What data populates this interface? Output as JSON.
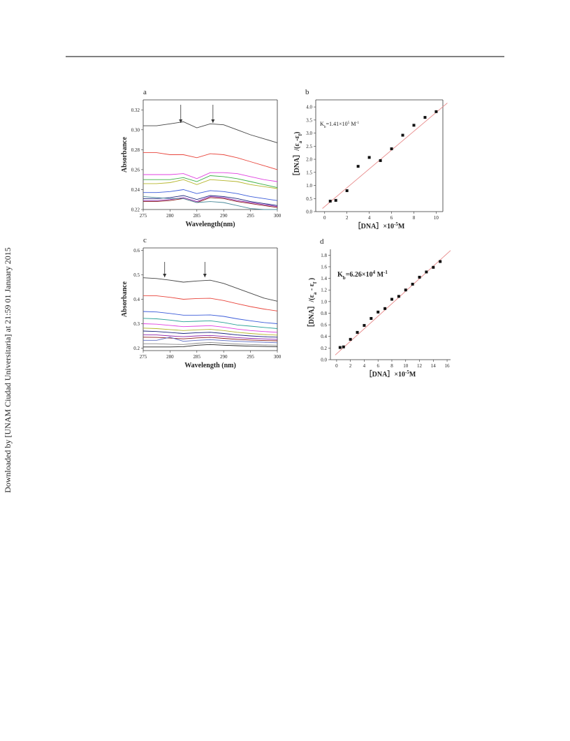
{
  "sidebar": "Downloaded by [UNAM Ciudad Universitaria] at 21:59 01 January 2015",
  "chart_data": [
    {
      "type": "line",
      "panel": "a",
      "xlabel": "Wavelength(nm)",
      "ylabel": "Absorbance",
      "x": [
        275,
        277.5,
        280,
        282.5,
        285,
        287.5,
        290,
        292.5,
        295,
        297.5,
        300
      ],
      "xlim": [
        275,
        300
      ],
      "xticks": [
        275,
        280,
        285,
        290,
        295,
        300
      ],
      "ylim": [
        0.22,
        0.33
      ],
      "yticks": [
        0.22,
        0.24,
        0.26,
        0.28,
        {
          "value": 0.3,
          "label": "0.30"
        },
        0.32
      ],
      "arrows": [
        282,
        288
      ],
      "series": [
        {
          "color": "#444444",
          "values": [
            0.304,
            0.304,
            0.306,
            0.308,
            0.302,
            0.306,
            0.305,
            0.3,
            0.295,
            0.291,
            0.287
          ]
        },
        {
          "color": "#e8453c",
          "values": [
            0.277,
            0.277,
            0.275,
            0.275,
            0.272,
            0.276,
            0.275,
            0.272,
            0.268,
            0.264,
            0.26
          ]
        },
        {
          "color": "#e040e0",
          "values": [
            0.255,
            0.255,
            0.255,
            0.256,
            0.251,
            0.257,
            0.257,
            0.256,
            0.253,
            0.25,
            0.248
          ]
        },
        {
          "color": "#3cb043",
          "values": [
            0.25,
            0.25,
            0.25,
            0.252,
            0.248,
            0.254,
            0.253,
            0.251,
            0.248,
            0.245,
            0.242
          ]
        },
        {
          "color": "#b5b52a",
          "values": [
            0.246,
            0.246,
            0.247,
            0.25,
            0.245,
            0.25,
            0.249,
            0.248,
            0.245,
            0.243,
            0.241
          ]
        },
        {
          "color": "#3a5bd9",
          "values": [
            0.237,
            0.237,
            0.238,
            0.24,
            0.236,
            0.239,
            0.238,
            0.236,
            0.233,
            0.231,
            0.229
          ]
        },
        {
          "color": "#1a237e",
          "values": [
            0.231,
            0.231,
            0.232,
            0.234,
            0.23,
            0.234,
            0.233,
            0.231,
            0.228,
            0.226,
            0.224
          ]
        },
        {
          "color": "#8e24aa",
          "values": [
            0.229,
            0.229,
            0.23,
            0.232,
            0.228,
            0.233,
            0.232,
            0.229,
            0.227,
            0.225,
            0.223
          ]
        },
        {
          "color": "#8b1a1a",
          "values": [
            0.228,
            0.228,
            0.229,
            0.231,
            0.227,
            0.232,
            0.231,
            0.228,
            0.226,
            0.224,
            0.222
          ]
        },
        {
          "color": "#4a8a9a",
          "values": [
            0.233,
            0.232,
            0.231,
            0.231,
            0.227,
            0.228,
            0.227,
            0.224,
            0.221,
            0.22,
            0.22
          ]
        }
      ]
    },
    {
      "type": "scatter",
      "panel": "b",
      "xlabel": [
        {
          "text": "［DNA］×10"
        },
        {
          "text": "-5",
          "shift": "sup"
        },
        {
          "text": "M"
        }
      ],
      "ylabel": [
        {
          "text": "［DNA］/(ε"
        },
        {
          "text": "a",
          "shift": "sub"
        },
        {
          "text": "-ε"
        },
        {
          "text": "f",
          "shift": "sub"
        },
        {
          "text": ")"
        }
      ],
      "annotation": [
        {
          "text": "K"
        },
        {
          "text": "b",
          "shift": "sub"
        },
        {
          "text": "=1.41×10"
        },
        {
          "text": "5",
          "shift": "sup"
        },
        {
          "text": " M"
        },
        {
          "text": "-1",
          "shift": "sup"
        }
      ],
      "x": [
        0.5,
        1,
        2,
        3,
        4,
        5,
        6,
        7,
        8,
        9,
        10
      ],
      "values": [
        0.4,
        0.43,
        0.8,
        1.73,
        2.07,
        1.95,
        2.4,
        2.92,
        3.3,
        3.6,
        3.82
      ],
      "color": "#111111",
      "fit": {
        "x": [
          -0.2,
          11
        ],
        "y": [
          0.12,
          4.15
        ],
        "color": "#e88a8a"
      },
      "xlim": [
        -0.8,
        10.6
      ],
      "xticks": [
        0,
        2,
        4,
        6,
        8,
        10
      ],
      "ylim": [
        0,
        4.27
      ],
      "yticks": [
        {
          "value": 0,
          "label": "0.0"
        },
        0.5,
        {
          "value": 1,
          "label": "1.0"
        },
        1.5,
        {
          "value": 2,
          "label": "2.0"
        },
        2.5,
        {
          "value": 3,
          "label": "3.0"
        },
        3.5,
        {
          "value": 4,
          "label": "4.0"
        }
      ]
    },
    {
      "type": "line",
      "panel": "c",
      "xlabel": "Wavelength (nm)",
      "ylabel": "Absorbance",
      "x": [
        275,
        277.5,
        280,
        282.5,
        285,
        287.5,
        290,
        292.5,
        295,
        297.5,
        300
      ],
      "xlim": [
        275,
        300
      ],
      "xticks": [
        275,
        280,
        285,
        290,
        295,
        300
      ],
      "ylim": [
        0.19,
        0.61
      ],
      "yticks": [
        0.2,
        0.3,
        0.4,
        0.5,
        0.6
      ],
      "arrows": [
        279,
        286.5
      ],
      "series": [
        {
          "color": "#444444",
          "values": [
            0.488,
            0.485,
            0.478,
            0.47,
            0.475,
            0.478,
            0.465,
            0.445,
            0.425,
            0.405,
            0.392
          ]
        },
        {
          "color": "#e8453c",
          "values": [
            0.415,
            0.414,
            0.408,
            0.4,
            0.403,
            0.404,
            0.395,
            0.382,
            0.37,
            0.36,
            0.352
          ]
        },
        {
          "color": "#3a5bd9",
          "values": [
            0.35,
            0.348,
            0.342,
            0.335,
            0.335,
            0.336,
            0.33,
            0.32,
            0.312,
            0.305,
            0.3
          ]
        },
        {
          "color": "#2aa198",
          "values": [
            0.322,
            0.32,
            0.315,
            0.308,
            0.31,
            0.312,
            0.305,
            0.295,
            0.29,
            0.285,
            0.28
          ]
        },
        {
          "color": "#e040e0",
          "values": [
            0.3,
            0.298,
            0.293,
            0.288,
            0.29,
            0.292,
            0.286,
            0.278,
            0.272,
            0.268,
            0.265
          ]
        },
        {
          "color": "#b5b52a",
          "values": [
            0.282,
            0.28,
            0.276,
            0.272,
            0.275,
            0.277,
            0.272,
            0.265,
            0.26,
            0.256,
            0.253
          ]
        },
        {
          "color": "#1a237e",
          "values": [
            0.27,
            0.268,
            0.264,
            0.26,
            0.263,
            0.265,
            0.26,
            0.254,
            0.25,
            0.247,
            0.245
          ]
        },
        {
          "color": "#8e24aa",
          "values": [
            0.255,
            0.254,
            0.25,
            0.247,
            0.25,
            0.252,
            0.248,
            0.243,
            0.24,
            0.238,
            0.236
          ]
        },
        {
          "color": "#8b1a1a",
          "values": [
            0.245,
            0.244,
            0.241,
            0.238,
            0.242,
            0.244,
            0.24,
            0.236,
            0.233,
            0.231,
            0.23
          ]
        },
        {
          "color": "#5c6bc0",
          "values": [
            0.232,
            0.232,
            0.245,
            0.228,
            0.232,
            0.235,
            0.231,
            0.228,
            0.226,
            0.224,
            0.222
          ]
        },
        {
          "color": "#888888",
          "values": [
            0.218,
            0.218,
            0.216,
            0.215,
            0.22,
            0.223,
            0.22,
            0.217,
            0.215,
            0.213,
            0.212
          ]
        },
        {
          "color": "#222222",
          "values": [
            0.205,
            0.205,
            0.205,
            0.206,
            0.212,
            0.215,
            0.212,
            0.21,
            0.208,
            0.207,
            0.206
          ]
        }
      ]
    },
    {
      "type": "scatter",
      "panel": "d",
      "xlabel": [
        {
          "text": "［DNA］×10"
        },
        {
          "text": "-5",
          "shift": "sup"
        },
        {
          "text": "M"
        }
      ],
      "ylabel": [
        {
          "text": "［DNA］/(ε"
        },
        {
          "text": "a",
          "shift": "sub"
        },
        {
          "text": " - ε"
        },
        {
          "text": "f",
          "shift": "sub"
        },
        {
          "text": " )"
        }
      ],
      "annotation": [
        {
          "text": "K"
        },
        {
          "text": "b",
          "shift": "sub"
        },
        {
          "text": "=6.26×10"
        },
        {
          "text": "4",
          "shift": "sup"
        },
        {
          "text": " M"
        },
        {
          "text": "-1",
          "shift": "sup"
        }
      ],
      "x": [
        0.5,
        1,
        2,
        3,
        4,
        5,
        6,
        7,
        8,
        9,
        10,
        11,
        12,
        13,
        14,
        15
      ],
      "values": [
        0.21,
        0.22,
        0.35,
        0.47,
        0.59,
        0.71,
        0.82,
        0.88,
        1.04,
        1.09,
        1.2,
        1.3,
        1.42,
        1.51,
        1.59,
        1.69
      ],
      "color": "#111111",
      "fit": {
        "x": [
          -0.2,
          16.5
        ],
        "y": [
          0.08,
          1.88
        ],
        "color": "#e88a8a"
      },
      "xlim": [
        -0.9,
        16.5
      ],
      "xticks": [
        0,
        2,
        4,
        6,
        8,
        10,
        12,
        14,
        16
      ],
      "ylim": [
        0,
        1.9
      ],
      "yticks": [
        {
          "value": 0,
          "label": "0.0"
        },
        0.2,
        0.4,
        0.6,
        0.8,
        {
          "value": 1,
          "label": "1.0"
        },
        1.2,
        1.4,
        1.6,
        1.8
      ]
    }
  ]
}
